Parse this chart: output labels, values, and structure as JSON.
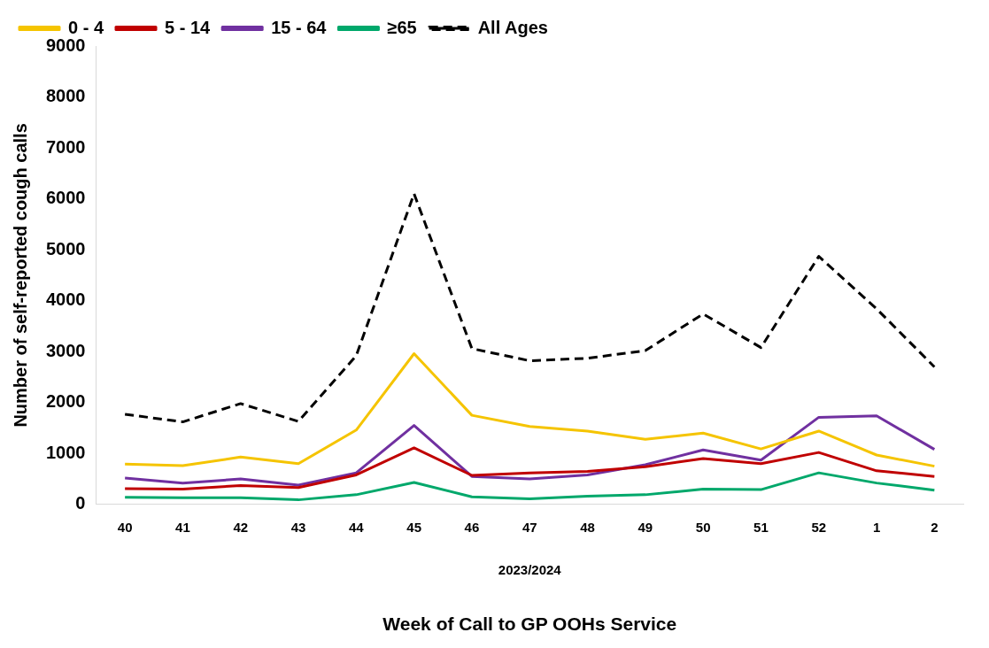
{
  "chart_data": {
    "type": "line",
    "xlabel": "Week of Call to GP OOHs Service",
    "ylabel": "Number of self-reported cough calls",
    "annotations": [
      "2023/2024"
    ],
    "categories": [
      "40",
      "41",
      "42",
      "43",
      "44",
      "45",
      "46",
      "47",
      "48",
      "49",
      "50",
      "51",
      "52",
      "1",
      "2"
    ],
    "series": [
      {
        "name": "0 - 4",
        "color": "#f5c400",
        "values": [
          790,
          760,
          930,
          800,
          1460,
          2960,
          1750,
          1530,
          1440,
          1280,
          1400,
          1090,
          1440,
          970,
          750
        ]
      },
      {
        "name": "5 - 14",
        "color": "#c00000",
        "values": [
          310,
          300,
          370,
          330,
          580,
          1110,
          570,
          620,
          650,
          740,
          900,
          800,
          1020,
          660,
          550
        ]
      },
      {
        "name": "15 - 64",
        "color": "#7030a0",
        "values": [
          520,
          420,
          500,
          380,
          620,
          1550,
          550,
          500,
          580,
          780,
          1070,
          870,
          1710,
          1740,
          1080
        ]
      },
      {
        "name": "≥65",
        "color": "#00a86b",
        "values": [
          140,
          130,
          130,
          90,
          190,
          430,
          150,
          110,
          160,
          190,
          300,
          290,
          620,
          420,
          280
        ]
      },
      {
        "name": "All Ages",
        "color": "#000000",
        "line_style": "dashed",
        "values": [
          1770,
          1620,
          1980,
          1630,
          2920,
          6100,
          3060,
          2820,
          2870,
          3020,
          3740,
          3080,
          4870,
          3840,
          2700
        ]
      }
    ],
    "ylim": [
      0,
      9000
    ],
    "yticks": [
      0,
      1000,
      2000,
      3000,
      4000,
      5000,
      6000,
      7000,
      8000,
      9000
    ],
    "grid": false,
    "legend": "top",
    "marker": "none"
  }
}
